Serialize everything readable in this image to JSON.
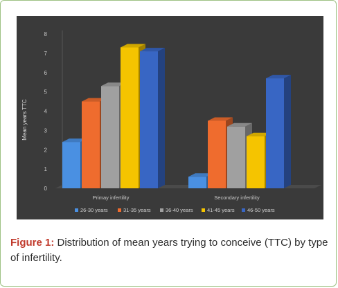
{
  "chart_data": {
    "type": "bar",
    "ylabel": "Mean years TTC",
    "ylim": [
      0,
      8
    ],
    "yticks": [
      0,
      1,
      2,
      3,
      4,
      5,
      6,
      7,
      8
    ],
    "grid": false,
    "legend_position": "bottom",
    "categories": [
      "Primay infertility",
      "Secondary infertility"
    ],
    "series": [
      {
        "name": "26-30 years",
        "color": "#4a90e2",
        "values": [
          2.4,
          0.6
        ]
      },
      {
        "name": "31-35 years",
        "color": "#ef6c2e",
        "values": [
          4.5,
          3.5
        ]
      },
      {
        "name": "36-40 years",
        "color": "#a0a0a0",
        "values": [
          5.3,
          3.2
        ]
      },
      {
        "name": "41-45 years",
        "color": "#f5c400",
        "values": [
          7.3,
          2.7
        ]
      },
      {
        "name": "46-50 years",
        "color": "#3866c4",
        "values": [
          7.1,
          5.7
        ]
      }
    ]
  },
  "caption": {
    "label": "Figure 1:",
    "text": " Distribution of mean years trying to conceive (TTC) by type of infertility."
  }
}
